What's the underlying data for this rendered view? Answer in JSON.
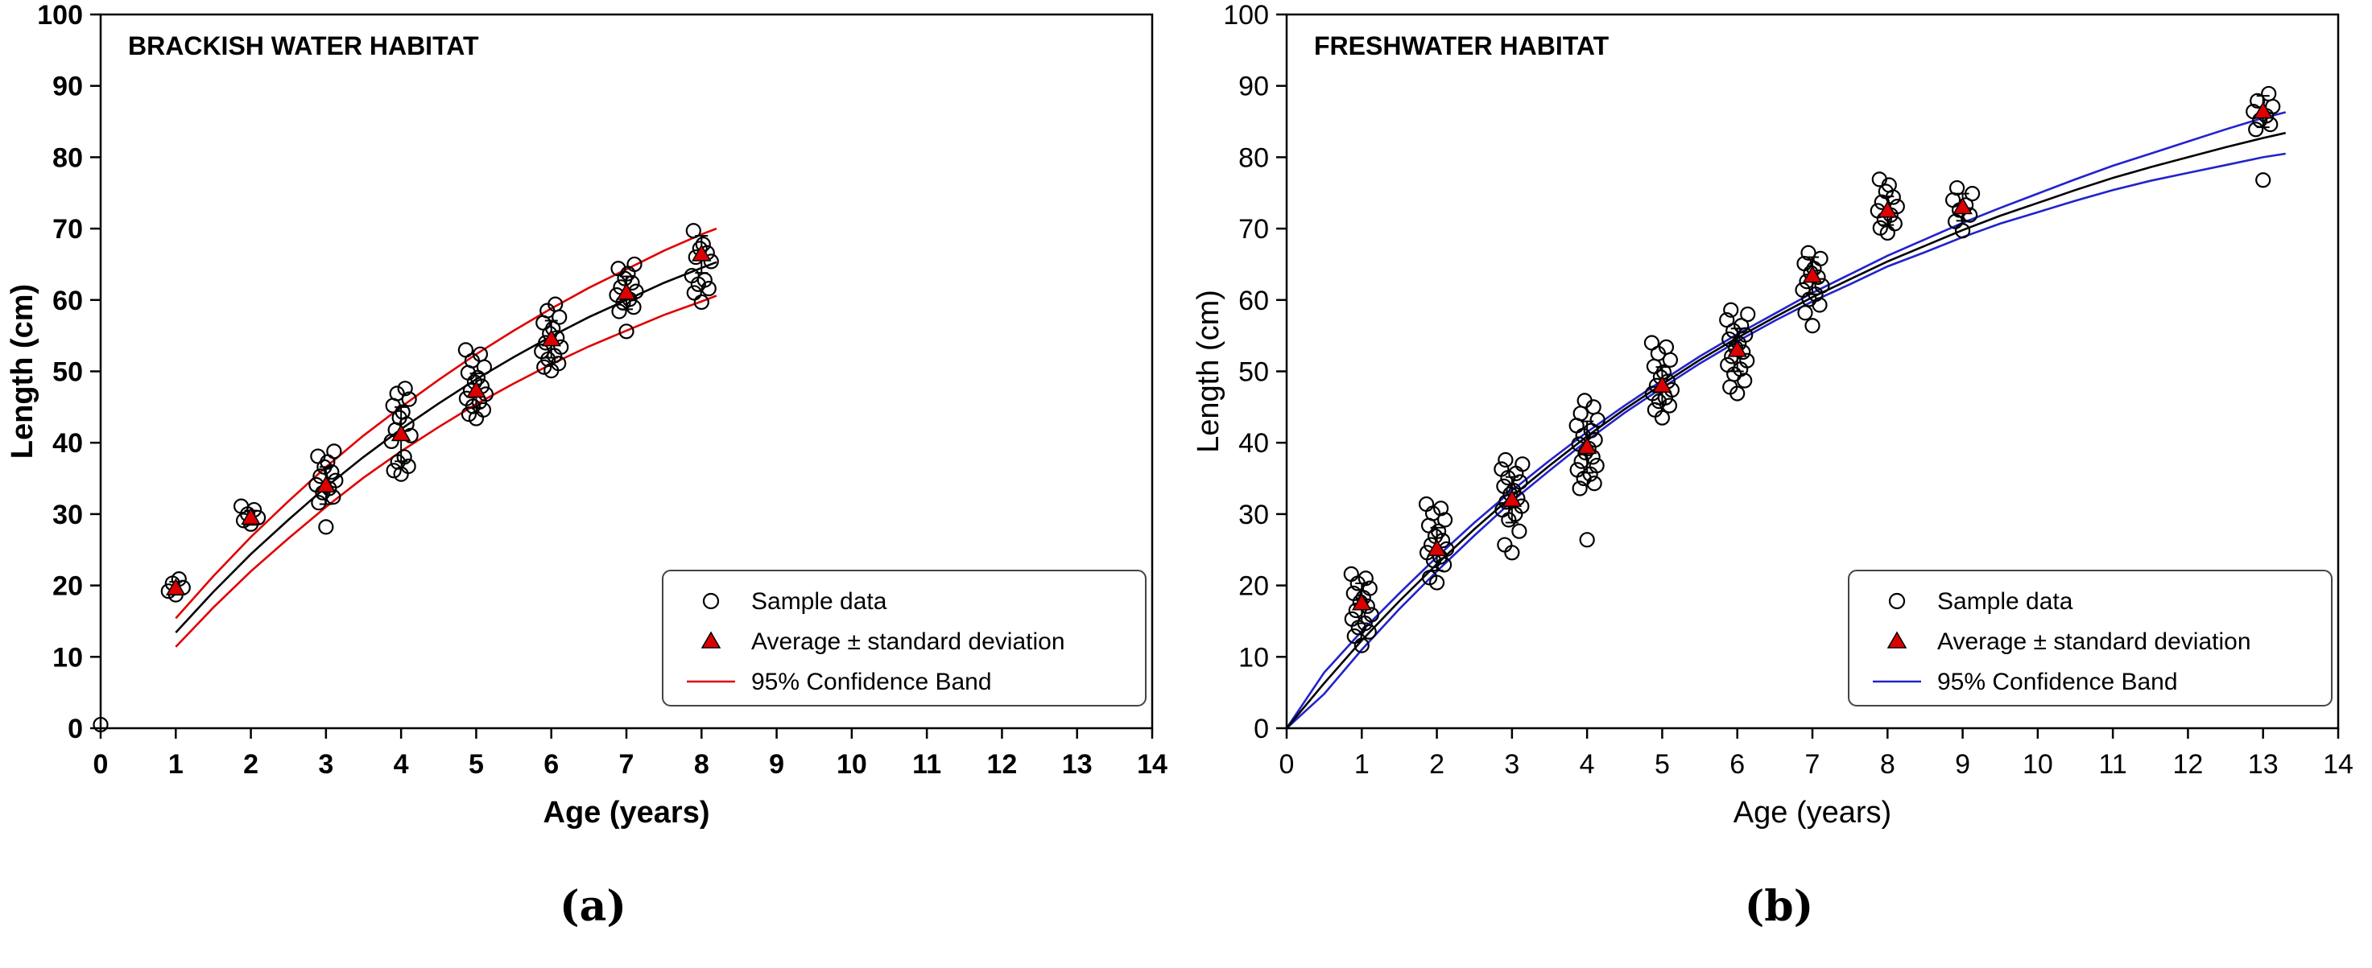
{
  "figure": {
    "captions": {
      "a": "(a)",
      "b": "(b)"
    }
  },
  "chart_data": [
    {
      "id": "a",
      "type": "scatter",
      "title": "BRACKISH WATER HABITAT",
      "xlabel": "Age (years)",
      "ylabel": "Length (cm)",
      "xlim": [
        0,
        14
      ],
      "ylim": [
        0,
        100
      ],
      "xticks": [
        0,
        1,
        2,
        3,
        4,
        5,
        6,
        7,
        8,
        9,
        10,
        11,
        12,
        13,
        14
      ],
      "yticks": [
        0,
        10,
        20,
        30,
        40,
        50,
        60,
        70,
        80,
        90,
        100
      ],
      "grid": false,
      "legend_position": "inside-bottom-right",
      "bold_style": true,
      "band_color": "#e00000",
      "curve_color": "#000000",
      "mean_color": "#dd0000",
      "legend": [
        "Sample data",
        "Average ± standard deviation",
        "95% Confidence Band"
      ],
      "samples": [
        {
          "x": 0,
          "y": [
            0.5
          ]
        },
        {
          "x": 1,
          "y": [
            18.7,
            19.2,
            19.7,
            20.3,
            20.9
          ]
        },
        {
          "x": 2,
          "y": [
            28.6,
            29.1,
            29.5,
            30.0,
            30.6,
            31.1
          ]
        },
        {
          "x": 3,
          "y": [
            28.2,
            31.6,
            32.4,
            33.0,
            33.6,
            34.1,
            34.7,
            35.3,
            35.9,
            36.6,
            37.3,
            38.1,
            38.8
          ]
        },
        {
          "x": 4,
          "y": [
            35.6,
            36.1,
            36.7,
            37.3,
            38.0,
            40.2,
            41.0,
            41.8,
            42.6,
            43.5,
            44.3,
            45.2,
            46.1,
            46.9,
            47.6
          ]
        },
        {
          "x": 5,
          "y": [
            43.4,
            44.0,
            44.6,
            45.1,
            45.7,
            46.2,
            46.8,
            47.3,
            47.9,
            48.5,
            49.1,
            49.8,
            50.6,
            51.5,
            52.4,
            53.0
          ]
        },
        {
          "x": 6,
          "y": [
            50.1,
            50.6,
            51.1,
            51.7,
            52.2,
            52.8,
            53.4,
            54.0,
            54.7,
            55.3,
            56.0,
            56.8,
            57.6,
            58.5,
            59.4
          ]
        },
        {
          "x": 7,
          "y": [
            55.6,
            58.4,
            59.0,
            59.6,
            60.1,
            60.7,
            61.2,
            61.8,
            62.4,
            63.0,
            63.7,
            64.4,
            65.0
          ]
        },
        {
          "x": 8,
          "y": [
            59.7,
            61.0,
            61.6,
            62.2,
            62.8,
            63.4,
            65.4,
            66.0,
            66.6,
            67.2,
            67.8,
            69.7
          ]
        }
      ],
      "means": {
        "x": [
          1,
          2,
          3,
          4,
          5,
          6,
          7,
          8
        ],
        "y": [
          19.6,
          29.5,
          34.0,
          41.2,
          47.3,
          54.5,
          61.0,
          66.4
        ],
        "sd": [
          0.9,
          1.0,
          2.6,
          3.8,
          2.4,
          2.6,
          2.3,
          2.6
        ]
      },
      "curve": {
        "x": [
          1,
          1.5,
          2,
          2.5,
          3,
          3.5,
          4,
          4.5,
          5,
          5.5,
          6,
          6.5,
          7,
          7.5,
          8,
          8.2
        ],
        "center": [
          13.4,
          19.1,
          24.4,
          29.2,
          33.8,
          38.0,
          41.9,
          45.5,
          48.9,
          52.0,
          54.9,
          57.6,
          60.0,
          62.4,
          64.5,
          65.3
        ],
        "upper": [
          15.4,
          21.3,
          26.8,
          31.8,
          36.6,
          41.0,
          45.0,
          48.8,
          52.4,
          55.7,
          58.8,
          61.7,
          64.3,
          66.9,
          69.2,
          70.0
        ],
        "lower": [
          11.4,
          16.9,
          22.0,
          26.6,
          31.0,
          35.1,
          38.8,
          42.2,
          45.4,
          48.3,
          51.0,
          53.5,
          55.7,
          57.9,
          59.8,
          60.6
        ]
      }
    },
    {
      "id": "b",
      "type": "scatter",
      "title": "FRESHWATER HABITAT",
      "xlabel": "Age (years)",
      "ylabel": "Length (cm)",
      "xlim": [
        0,
        14
      ],
      "ylim": [
        0,
        100
      ],
      "xticks": [
        0,
        1,
        2,
        3,
        4,
        5,
        6,
        7,
        8,
        9,
        10,
        11,
        12,
        13,
        14
      ],
      "yticks": [
        0,
        10,
        20,
        30,
        40,
        50,
        60,
        70,
        80,
        90,
        100
      ],
      "grid": false,
      "legend_position": "inside-bottom-right",
      "bold_style": false,
      "band_color": "#2222cc",
      "curve_color": "#000000",
      "mean_color": "#dd0000",
      "legend": [
        "Sample data",
        "Average ± standard deviation",
        "95% Confidence Band"
      ],
      "samples": [
        {
          "x": 1,
          "y": [
            11.6,
            12.9,
            13.5,
            14.1,
            14.7,
            15.3,
            15.9,
            16.5,
            17.1,
            17.7,
            18.3,
            18.9,
            19.6,
            20.3,
            21.0,
            21.6
          ]
        },
        {
          "x": 2,
          "y": [
            20.4,
            21.1,
            22.9,
            23.5,
            24.0,
            24.6,
            25.1,
            25.7,
            26.3,
            26.9,
            27.6,
            28.4,
            29.2,
            30.1,
            30.8,
            31.4
          ]
        },
        {
          "x": 3,
          "y": [
            24.6,
            25.7,
            27.6,
            29.2,
            30.0,
            30.6,
            31.1,
            31.7,
            32.2,
            32.8,
            33.3,
            33.9,
            34.5,
            35.1,
            35.7,
            36.3,
            37.0,
            37.6
          ]
        },
        {
          "x": 4,
          "y": [
            26.4,
            33.6,
            34.3,
            35.0,
            35.6,
            36.2,
            36.8,
            37.4,
            38.0,
            38.6,
            39.2,
            39.8,
            40.4,
            41.0,
            41.7,
            42.4,
            43.2,
            44.1,
            45.0,
            45.9
          ]
        },
        {
          "x": 5,
          "y": [
            43.5,
            44.6,
            45.2,
            45.8,
            46.3,
            46.9,
            47.4,
            48.0,
            48.6,
            49.2,
            49.9,
            50.7,
            51.6,
            52.5,
            53.4,
            54.0
          ]
        },
        {
          "x": 6,
          "y": [
            46.9,
            47.8,
            48.7,
            49.6,
            50.3,
            50.9,
            51.5,
            52.1,
            52.7,
            53.3,
            53.9,
            54.5,
            55.1,
            55.7,
            56.4,
            57.2,
            58.0,
            58.6
          ]
        },
        {
          "x": 7,
          "y": [
            56.4,
            58.2,
            59.3,
            60.1,
            60.8,
            61.4,
            62.0,
            62.6,
            63.2,
            63.8,
            64.4,
            65.1,
            65.8,
            66.6
          ]
        },
        {
          "x": 8,
          "y": [
            69.4,
            70.1,
            70.7,
            71.3,
            71.9,
            72.5,
            73.1,
            73.7,
            74.4,
            75.2,
            76.1,
            76.9
          ]
        },
        {
          "x": 9,
          "y": [
            69.7,
            71.0,
            71.9,
            72.6,
            73.3,
            74.0,
            74.9,
            75.7
          ]
        },
        {
          "x": 13,
          "y": [
            76.8,
            83.9,
            84.6,
            85.2,
            85.8,
            86.4,
            87.1,
            87.9,
            88.9
          ]
        }
      ],
      "means": {
        "x": [
          1,
          2,
          3,
          4,
          5,
          6,
          7,
          8,
          9,
          13
        ],
        "y": [
          17.5,
          25.1,
          32.0,
          39.4,
          48.0,
          53.0,
          63.4,
          72.5,
          73.0,
          86.4
        ],
        "sd": [
          2.8,
          3.0,
          3.2,
          3.6,
          2.6,
          3.0,
          2.6,
          2.0,
          1.9,
          2.2
        ]
      },
      "curve": {
        "x": [
          0,
          0.5,
          1,
          1.5,
          2,
          2.5,
          3,
          3.5,
          4,
          4.5,
          5,
          5.5,
          6,
          6.5,
          7,
          7.5,
          8,
          8.5,
          9,
          9.5,
          10,
          10.5,
          11,
          11.5,
          12,
          12.5,
          13,
          13.3
        ],
        "center": [
          0,
          6.3,
          12.3,
          17.8,
          23.0,
          27.9,
          32.5,
          36.8,
          40.9,
          44.7,
          48.2,
          51.6,
          54.7,
          57.6,
          60.4,
          62.9,
          65.4,
          67.6,
          69.8,
          71.8,
          73.6,
          75.4,
          77.1,
          78.6,
          80.0,
          81.4,
          82.7,
          83.4
        ],
        "upper": [
          0,
          7.8,
          13.6,
          18.9,
          24.0,
          28.8,
          33.3,
          37.5,
          41.5,
          45.2,
          48.7,
          52.1,
          55.2,
          58.1,
          61.0,
          63.6,
          66.2,
          68.5,
          70.8,
          72.9,
          74.9,
          76.9,
          78.8,
          80.5,
          82.2,
          83.9,
          85.5,
          86.3
        ],
        "lower": [
          0,
          4.8,
          11.0,
          16.7,
          22.0,
          27.0,
          31.8,
          36.1,
          40.3,
          44.2,
          47.7,
          51.1,
          54.2,
          57.1,
          59.8,
          62.2,
          64.7,
          66.7,
          68.8,
          70.7,
          72.3,
          73.9,
          75.4,
          76.7,
          77.8,
          78.9,
          80.0,
          80.5
        ]
      }
    }
  ]
}
